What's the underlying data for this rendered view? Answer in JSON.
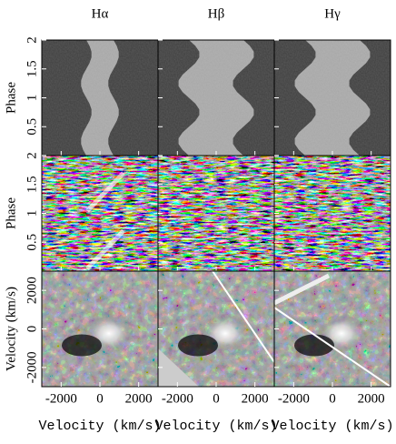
{
  "chart_data": {
    "type": "image_grid",
    "columns": [
      "Hα",
      "Hβ",
      "Hγ"
    ],
    "xlabels": [
      "Velocity (km/s)",
      "Velocity (km/s)",
      "Velocity (km/s)"
    ],
    "xlim": [
      -3000,
      3000
    ],
    "xticks": [
      -2000,
      0,
      2000
    ],
    "rows": [
      {
        "ylabel": "Phase",
        "ylim": [
          0,
          2
        ],
        "yticks": [
          0.5,
          1,
          1.5,
          2
        ]
      },
      {
        "ylabel": "Phase",
        "ylim": [
          0,
          2
        ],
        "yticks": [
          0.5,
          1,
          1.5,
          2
        ]
      },
      {
        "ylabel": "Velocity (km/s)",
        "ylim": [
          -3000,
          3000
        ],
        "yticks": [
          -2000,
          0,
          2000
        ]
      }
    ]
  }
}
